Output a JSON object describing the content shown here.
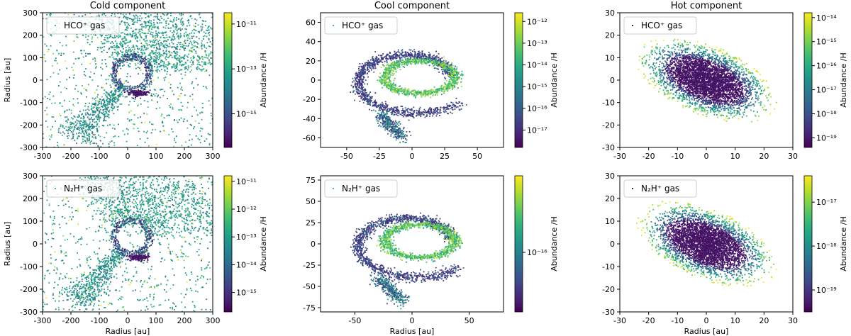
{
  "chart_data": [
    {
      "type": "scatter",
      "title": "Cold component",
      "xlabel": "",
      "ylabel": "Radius [au]",
      "xlim": [
        -300,
        300
      ],
      "ylim": [
        -300,
        300
      ],
      "xticks": [
        -300,
        -200,
        -100,
        0,
        100,
        200,
        300
      ],
      "yticks": [
        -300,
        -200,
        -100,
        0,
        100,
        200,
        300
      ],
      "legend": {
        "label": "HCO⁺ gas",
        "placement": "top-left"
      },
      "colorbar": {
        "label": "Abundance /H",
        "range_exp": [
          -16.5,
          -10.5
        ],
        "tick_exps": [
          -15,
          -13,
          -11
        ]
      },
      "pattern": "cold",
      "seed": 11
    },
    {
      "type": "scatter",
      "title": "Cool component",
      "xlabel": "",
      "ylabel": "",
      "xlim": [
        -70,
        70
      ],
      "ylim": [
        -70,
        70
      ],
      "xticks": [
        -50,
        -25,
        0,
        25,
        50
      ],
      "yticks": [
        -60,
        -40,
        -20,
        0,
        20,
        40,
        60
      ],
      "legend": {
        "label": "HCO⁺ gas",
        "placement": "top-left"
      },
      "colorbar": {
        "label": "Abundance /H",
        "range_exp": [
          -17.8,
          -11.6
        ],
        "tick_exps": [
          -17,
          -16,
          -15,
          -14,
          -13,
          -12
        ]
      },
      "pattern": "cool",
      "seed": 23
    },
    {
      "type": "scatter",
      "title": "Hot component",
      "xlabel": "",
      "ylabel": "",
      "xlim": [
        -30,
        30
      ],
      "ylim": [
        -30,
        30
      ],
      "xticks": [
        -30,
        -20,
        -10,
        0,
        10,
        20,
        30
      ],
      "yticks": [
        -30,
        -20,
        -10,
        0,
        10,
        20,
        30
      ],
      "legend": {
        "label": "HCO⁺ gas",
        "placement": "top-left"
      },
      "colorbar": {
        "label": "Abundance /H",
        "range_exp": [
          -19.4,
          -13.8
        ],
        "tick_exps": [
          -19,
          -18,
          -17,
          -16,
          -15,
          -14
        ]
      },
      "pattern": "hot",
      "seed": 37
    },
    {
      "type": "scatter",
      "title": "",
      "xlabel": "Radius [au]",
      "ylabel": "Radius [au]",
      "xlim": [
        -300,
        300
      ],
      "ylim": [
        -300,
        300
      ],
      "xticks": [
        -300,
        -200,
        -100,
        0,
        100,
        200,
        300
      ],
      "yticks": [
        -300,
        -200,
        -100,
        0,
        100,
        200,
        300
      ],
      "legend": {
        "label": "N₂H⁺ gas",
        "placement": "top-left"
      },
      "colorbar": {
        "label": "Abundance /H",
        "range_exp": [
          -15.7,
          -10.8
        ],
        "tick_exps": [
          -15,
          -14,
          -13,
          -12,
          -11
        ]
      },
      "pattern": "cold",
      "seed": 53
    },
    {
      "type": "scatter",
      "title": "",
      "xlabel": "Radius [au]",
      "ylabel": "",
      "xlim": [
        -80,
        80
      ],
      "ylim": [
        -80,
        80
      ],
      "xticks": [
        -50,
        0,
        50
      ],
      "yticks": [
        -75,
        -50,
        -25,
        0,
        25,
        50,
        75
      ],
      "legend": {
        "label": "N₂H⁺ gas",
        "placement": "top-left"
      },
      "colorbar": {
        "label": "Abundance /H",
        "range_exp": [
          -16.7,
          -15.1
        ],
        "tick_exps": [
          -16
        ]
      },
      "pattern": "cool",
      "seed": 71
    },
    {
      "type": "scatter",
      "title": "",
      "xlabel": "Radius [au]",
      "ylabel": "",
      "xlim": [
        -30,
        30
      ],
      "ylim": [
        -30,
        30
      ],
      "xticks": [
        -30,
        -20,
        -10,
        0,
        10,
        20,
        30
      ],
      "yticks": [
        -30,
        -20,
        -10,
        0,
        10,
        20,
        30
      ],
      "legend": {
        "label": "N₂H⁺ gas",
        "placement": "top-left"
      },
      "colorbar": {
        "label": "Abundance /H",
        "range_exp": [
          -19.5,
          -16.4
        ],
        "tick_exps": [
          -19,
          -18,
          -17
        ]
      },
      "pattern": "hot",
      "seed": 89
    }
  ]
}
